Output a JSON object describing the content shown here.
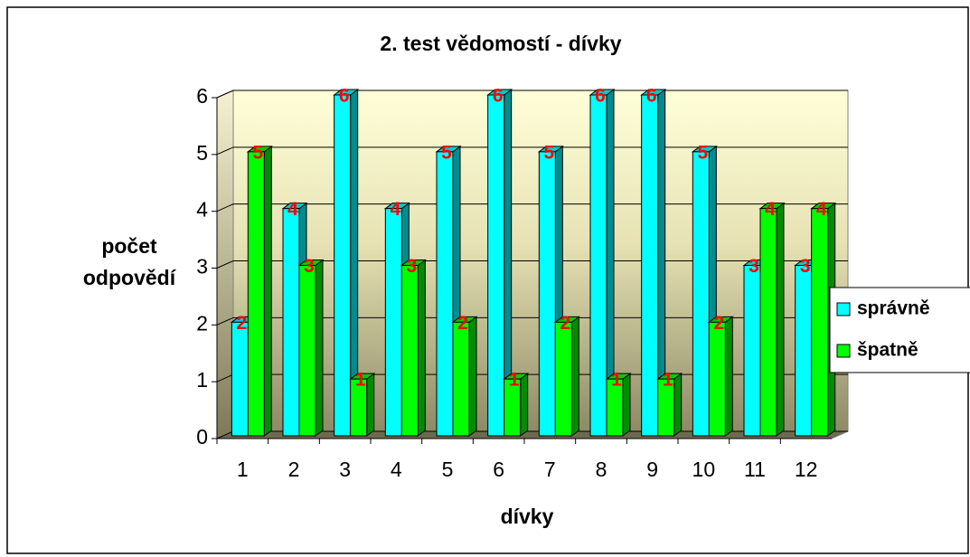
{
  "chart_data": {
    "type": "bar3d",
    "title": "2. test vědomostí - dívky",
    "x_label": "dívky",
    "y_label": "počet odpovědí",
    "categories": [
      "1",
      "2",
      "3",
      "4",
      "5",
      "6",
      "7",
      "8",
      "9",
      "10",
      "11",
      "12"
    ],
    "series": [
      {
        "name": "správně",
        "color": "#00ffff",
        "values": [
          2,
          4,
          6,
          4,
          5,
          6,
          5,
          6,
          6,
          5,
          3,
          3
        ]
      },
      {
        "name": "špatně",
        "color": "#00ff00",
        "values": [
          5,
          3,
          1,
          3,
          2,
          1,
          2,
          1,
          1,
          2,
          4,
          4
        ]
      }
    ],
    "ylim": [
      0,
      6
    ],
    "yticks": [
      0,
      1,
      2,
      3,
      4,
      5,
      6
    ],
    "grid": true,
    "legend": "right",
    "label_color": "#ff0000"
  }
}
